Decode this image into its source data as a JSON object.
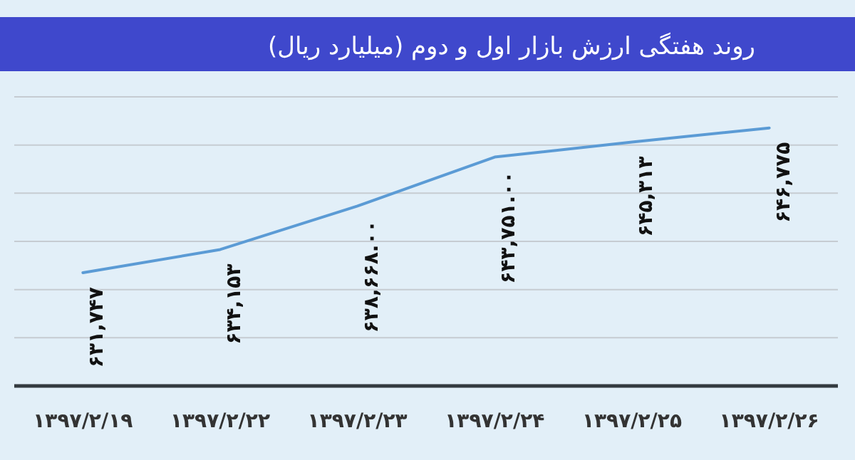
{
  "chart_data": {
    "type": "line",
    "title": "روند هفتگی ارزش بازار اول و دوم (میلیارد ریال)",
    "categories": [
      "۱۳۹۷/۲/۱۹",
      "۱۳۹۷/۲/۲۲",
      "۱۳۹۷/۲/۲۳",
      "۱۳۹۷/۲/۲۴",
      "۱۳۹۷/۲/۲۵",
      "۱۳۹۷/۲/۲۶"
    ],
    "values": [
      631747,
      634153,
      638668,
      643751,
      645313,
      646775
    ],
    "value_labels": [
      "۶۳۱,۷۴۷",
      "۶۳۴,۱۵۳",
      "۶۳۸,۶۶۸.۰۰",
      "۶۴۳,۷۵۱.۰۰",
      "۶۴۵,۳۱۳",
      "۶۴۶,۷۷۵"
    ],
    "color": "#5b9bd5",
    "ylim": [
      620000,
      650000
    ],
    "yticks": [
      {
        "value": 620000,
        "label": null
      },
      {
        "value": 625000,
        "label": null
      },
      {
        "value": 630000,
        "label": null
      },
      {
        "value": 635000,
        "label": null
      },
      {
        "value": 640000,
        "label": null
      },
      {
        "value": 645000,
        "label": null
      },
      {
        "value": 650000,
        "label": null
      }
    ],
    "grid": "y",
    "tick_labels": "x"
  }
}
